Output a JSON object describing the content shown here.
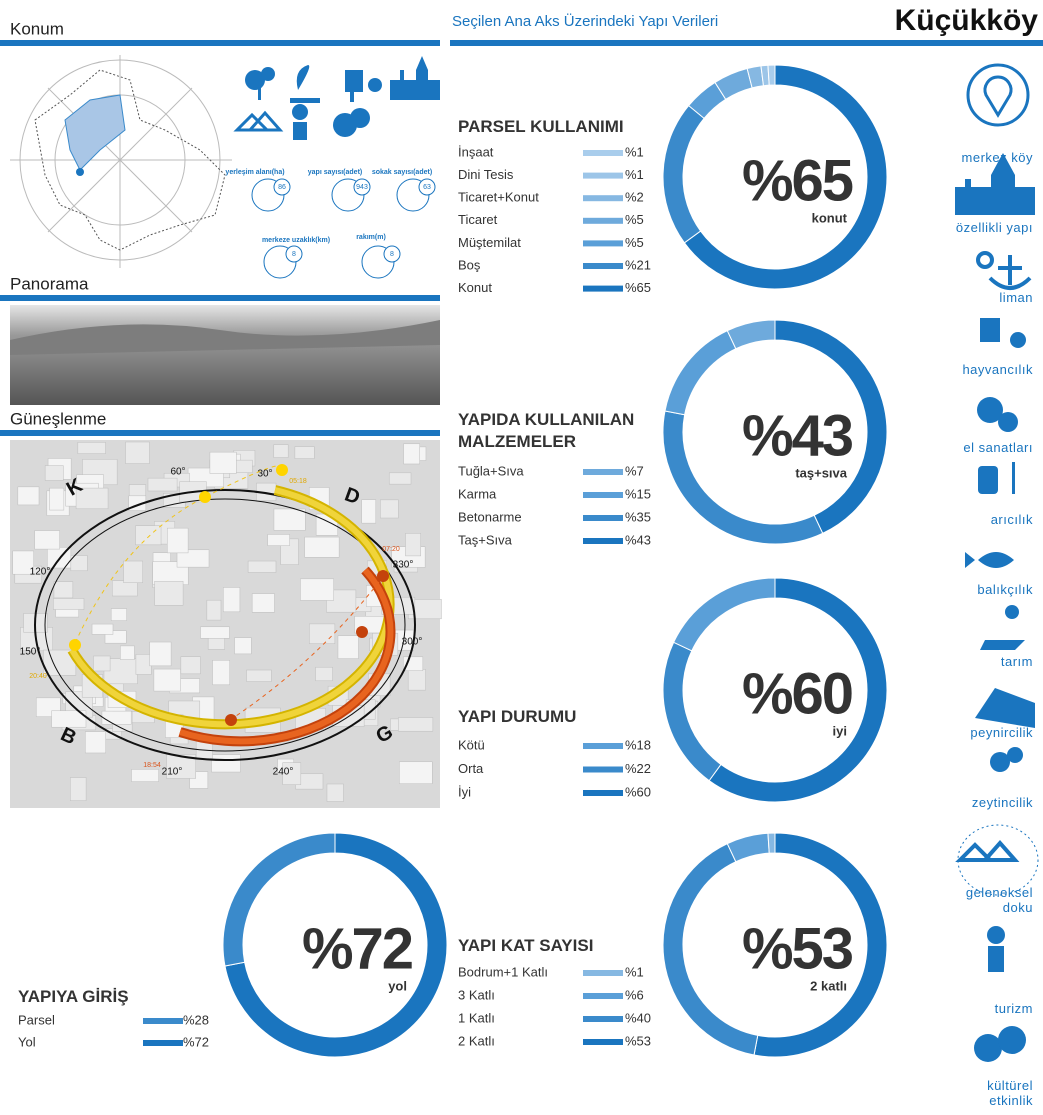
{
  "header": {
    "left_title": "Konum",
    "middle_title": "Seçilen Ana Aks Üzerindeki Yapı Verileri",
    "place": "Küçükköy"
  },
  "sections": {
    "panorama": "Panorama",
    "sunlight": "Güneşlenme"
  },
  "location_stats": [
    {
      "label": "yerleşim alanı(ha)",
      "value": 86
    },
    {
      "label": "yapı sayısı(adet)",
      "value": 943
    },
    {
      "label": "sokak sayısı(adet)",
      "value": 63
    },
    {
      "label": "merkeze uzaklık(km)",
      "value": 8
    },
    {
      "label": "rakım(m)",
      "value": 8
    }
  ],
  "sun_diagram": {
    "directions": [
      "K",
      "D",
      "B",
      "G"
    ],
    "angles": [
      "60°",
      "30°",
      "120°",
      "150°",
      "330°",
      "300°",
      "210°",
      "240°"
    ],
    "times": [
      "05:18",
      "07:20",
      "20:40",
      "18:54"
    ]
  },
  "sidebar": [
    "merkez köy",
    "özellikli yapı",
    "liman",
    "hayvancılık",
    "el sanatları",
    "arıcılık",
    "balıkçılık",
    "tarım",
    "peynircilik",
    "zeytincilik",
    "geleneksel doku",
    "turizm",
    "kültürel etkinlik"
  ],
  "chart_data": [
    {
      "type": "pie",
      "donut": true,
      "title": "PARSEL KULLANIMI",
      "center_label": "konut",
      "categories": [
        "İnşaat",
        "Dini Tesis",
        "Ticaret+Konut",
        "Ticaret",
        "Müştemilat",
        "Boş",
        "Konut"
      ],
      "values": [
        1,
        1,
        2,
        5,
        5,
        21,
        65
      ],
      "value_labels": [
        "%1",
        "%1",
        "%2",
        "%5",
        "%5",
        "%21",
        "%65"
      ],
      "colors": [
        "#a9cdec",
        "#9cc5e8",
        "#86b8e2",
        "#6eaadc",
        "#5a9fd8",
        "#3a8acb",
        "#1a75bf"
      ]
    },
    {
      "type": "pie",
      "donut": true,
      "title": "YAPIDA KULLANILAN MALZEMELER",
      "center_label": "taş+sıva",
      "categories": [
        "Tuğla+Sıva",
        "Karma",
        "Betonarme",
        "Taş+Sıva"
      ],
      "values": [
        7,
        15,
        35,
        43
      ],
      "value_labels": [
        "%7",
        "%15",
        "%35",
        "%43"
      ],
      "colors": [
        "#6eaadc",
        "#5a9fd8",
        "#3a8acb",
        "#1a75bf"
      ]
    },
    {
      "type": "pie",
      "donut": true,
      "title": "YAPI DURUMU",
      "center_label": "iyi",
      "categories": [
        "Kötü",
        "Orta",
        "İyi"
      ],
      "values": [
        18,
        22,
        60
      ],
      "value_labels": [
        "%18",
        "%22",
        "%60"
      ],
      "colors": [
        "#5a9fd8",
        "#3a8acb",
        "#1a75bf"
      ]
    },
    {
      "type": "pie",
      "donut": true,
      "title": "YAPI KAT SAYISI",
      "center_label": "2 katlı",
      "categories": [
        "Bodrum+1 Katlı",
        "3 Katlı",
        "1 Katlı",
        "2 Katlı"
      ],
      "values": [
        1,
        6,
        40,
        53
      ],
      "value_labels": [
        "%1",
        "%6",
        "%40",
        "%53"
      ],
      "colors": [
        "#86b8e2",
        "#5a9fd8",
        "#3a8acb",
        "#1a75bf"
      ]
    },
    {
      "type": "pie",
      "donut": true,
      "title": "YAPIYA GİRİŞ",
      "center_label": "yol",
      "categories": [
        "Parsel",
        "Yol"
      ],
      "values": [
        28,
        72
      ],
      "value_labels": [
        "%28",
        "%72"
      ],
      "colors": [
        "#3a8acb",
        "#1a75bf"
      ]
    }
  ]
}
